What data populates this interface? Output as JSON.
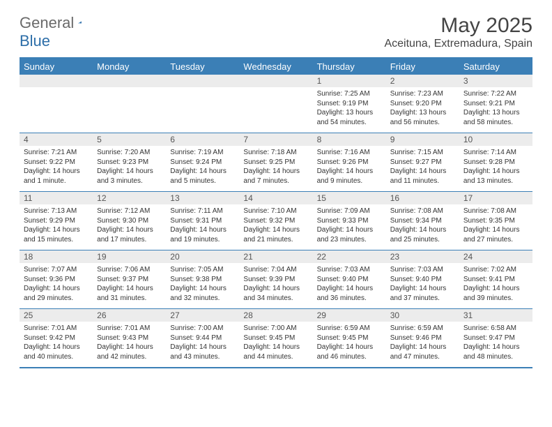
{
  "logo": {
    "general": "General",
    "blue": "Blue",
    "triangle_color": "#2d6ea8"
  },
  "header": {
    "month_title": "May 2025",
    "location": "Aceituna, Extremadura, Spain",
    "title_fontsize": 30,
    "location_fontsize": 16,
    "logo_fontsize": 22
  },
  "style": {
    "header_bg": "#3b7fb6",
    "header_text": "#ffffff",
    "daynum_bg": "#ececec",
    "daynum_color": "#555555",
    "body_text": "#333333",
    "border_color": "#3b7fb6",
    "dayhead_fontsize": 13,
    "daynum_fontsize": 12,
    "cell_fontsize": 10
  },
  "day_names": [
    "Sunday",
    "Monday",
    "Tuesday",
    "Wednesday",
    "Thursday",
    "Friday",
    "Saturday"
  ],
  "weeks": [
    [
      {
        "n": "",
        "lines": []
      },
      {
        "n": "",
        "lines": []
      },
      {
        "n": "",
        "lines": []
      },
      {
        "n": "",
        "lines": []
      },
      {
        "n": "1",
        "lines": [
          "Sunrise: 7:25 AM",
          "Sunset: 9:19 PM",
          "Daylight: 13 hours and 54 minutes."
        ]
      },
      {
        "n": "2",
        "lines": [
          "Sunrise: 7:23 AM",
          "Sunset: 9:20 PM",
          "Daylight: 13 hours and 56 minutes."
        ]
      },
      {
        "n": "3",
        "lines": [
          "Sunrise: 7:22 AM",
          "Sunset: 9:21 PM",
          "Daylight: 13 hours and 58 minutes."
        ]
      }
    ],
    [
      {
        "n": "4",
        "lines": [
          "Sunrise: 7:21 AM",
          "Sunset: 9:22 PM",
          "Daylight: 14 hours and 1 minute."
        ]
      },
      {
        "n": "5",
        "lines": [
          "Sunrise: 7:20 AM",
          "Sunset: 9:23 PM",
          "Daylight: 14 hours and 3 minutes."
        ]
      },
      {
        "n": "6",
        "lines": [
          "Sunrise: 7:19 AM",
          "Sunset: 9:24 PM",
          "Daylight: 14 hours and 5 minutes."
        ]
      },
      {
        "n": "7",
        "lines": [
          "Sunrise: 7:18 AM",
          "Sunset: 9:25 PM",
          "Daylight: 14 hours and 7 minutes."
        ]
      },
      {
        "n": "8",
        "lines": [
          "Sunrise: 7:16 AM",
          "Sunset: 9:26 PM",
          "Daylight: 14 hours and 9 minutes."
        ]
      },
      {
        "n": "9",
        "lines": [
          "Sunrise: 7:15 AM",
          "Sunset: 9:27 PM",
          "Daylight: 14 hours and 11 minutes."
        ]
      },
      {
        "n": "10",
        "lines": [
          "Sunrise: 7:14 AM",
          "Sunset: 9:28 PM",
          "Daylight: 14 hours and 13 minutes."
        ]
      }
    ],
    [
      {
        "n": "11",
        "lines": [
          "Sunrise: 7:13 AM",
          "Sunset: 9:29 PM",
          "Daylight: 14 hours and 15 minutes."
        ]
      },
      {
        "n": "12",
        "lines": [
          "Sunrise: 7:12 AM",
          "Sunset: 9:30 PM",
          "Daylight: 14 hours and 17 minutes."
        ]
      },
      {
        "n": "13",
        "lines": [
          "Sunrise: 7:11 AM",
          "Sunset: 9:31 PM",
          "Daylight: 14 hours and 19 minutes."
        ]
      },
      {
        "n": "14",
        "lines": [
          "Sunrise: 7:10 AM",
          "Sunset: 9:32 PM",
          "Daylight: 14 hours and 21 minutes."
        ]
      },
      {
        "n": "15",
        "lines": [
          "Sunrise: 7:09 AM",
          "Sunset: 9:33 PM",
          "Daylight: 14 hours and 23 minutes."
        ]
      },
      {
        "n": "16",
        "lines": [
          "Sunrise: 7:08 AM",
          "Sunset: 9:34 PM",
          "Daylight: 14 hours and 25 minutes."
        ]
      },
      {
        "n": "17",
        "lines": [
          "Sunrise: 7:08 AM",
          "Sunset: 9:35 PM",
          "Daylight: 14 hours and 27 minutes."
        ]
      }
    ],
    [
      {
        "n": "18",
        "lines": [
          "Sunrise: 7:07 AM",
          "Sunset: 9:36 PM",
          "Daylight: 14 hours and 29 minutes."
        ]
      },
      {
        "n": "19",
        "lines": [
          "Sunrise: 7:06 AM",
          "Sunset: 9:37 PM",
          "Daylight: 14 hours and 31 minutes."
        ]
      },
      {
        "n": "20",
        "lines": [
          "Sunrise: 7:05 AM",
          "Sunset: 9:38 PM",
          "Daylight: 14 hours and 32 minutes."
        ]
      },
      {
        "n": "21",
        "lines": [
          "Sunrise: 7:04 AM",
          "Sunset: 9:39 PM",
          "Daylight: 14 hours and 34 minutes."
        ]
      },
      {
        "n": "22",
        "lines": [
          "Sunrise: 7:03 AM",
          "Sunset: 9:40 PM",
          "Daylight: 14 hours and 36 minutes."
        ]
      },
      {
        "n": "23",
        "lines": [
          "Sunrise: 7:03 AM",
          "Sunset: 9:40 PM",
          "Daylight: 14 hours and 37 minutes."
        ]
      },
      {
        "n": "24",
        "lines": [
          "Sunrise: 7:02 AM",
          "Sunset: 9:41 PM",
          "Daylight: 14 hours and 39 minutes."
        ]
      }
    ],
    [
      {
        "n": "25",
        "lines": [
          "Sunrise: 7:01 AM",
          "Sunset: 9:42 PM",
          "Daylight: 14 hours and 40 minutes."
        ]
      },
      {
        "n": "26",
        "lines": [
          "Sunrise: 7:01 AM",
          "Sunset: 9:43 PM",
          "Daylight: 14 hours and 42 minutes."
        ]
      },
      {
        "n": "27",
        "lines": [
          "Sunrise: 7:00 AM",
          "Sunset: 9:44 PM",
          "Daylight: 14 hours and 43 minutes."
        ]
      },
      {
        "n": "28",
        "lines": [
          "Sunrise: 7:00 AM",
          "Sunset: 9:45 PM",
          "Daylight: 14 hours and 44 minutes."
        ]
      },
      {
        "n": "29",
        "lines": [
          "Sunrise: 6:59 AM",
          "Sunset: 9:45 PM",
          "Daylight: 14 hours and 46 minutes."
        ]
      },
      {
        "n": "30",
        "lines": [
          "Sunrise: 6:59 AM",
          "Sunset: 9:46 PM",
          "Daylight: 14 hours and 47 minutes."
        ]
      },
      {
        "n": "31",
        "lines": [
          "Sunrise: 6:58 AM",
          "Sunset: 9:47 PM",
          "Daylight: 14 hours and 48 minutes."
        ]
      }
    ]
  ]
}
